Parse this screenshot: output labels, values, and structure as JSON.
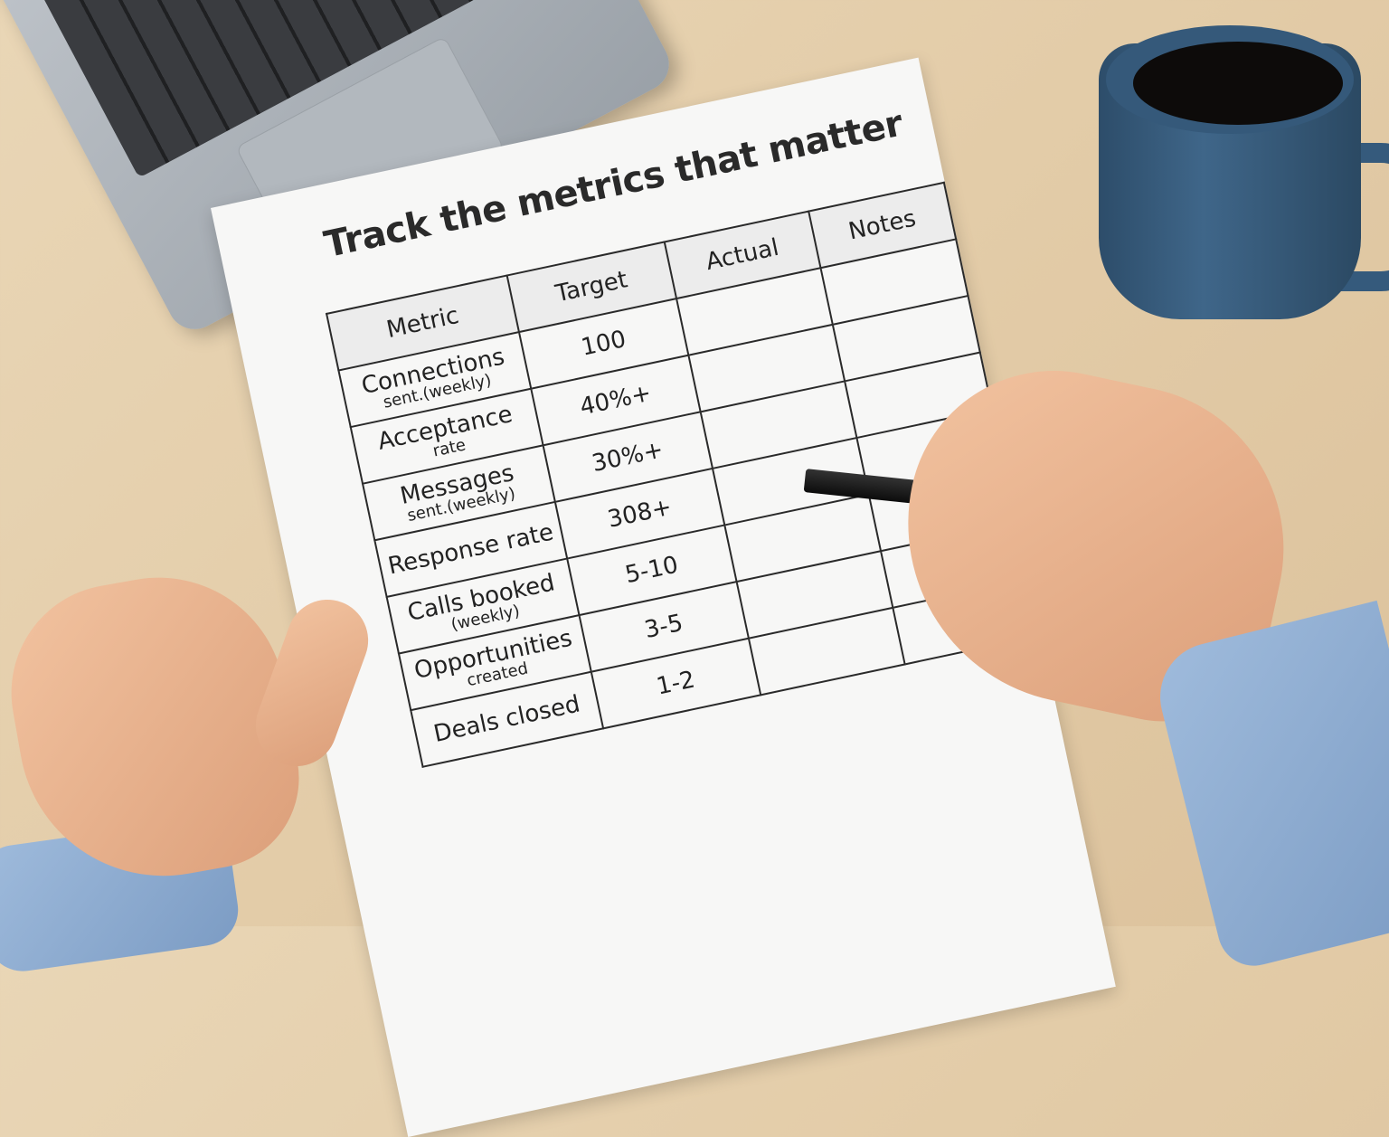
{
  "document": {
    "title": "Track the metrics that matter",
    "table": {
      "headers": [
        "Metric",
        "Target",
        "Actual",
        "Notes"
      ],
      "rows": [
        {
          "metric": "Connections",
          "metric_sub": "sent.(weekly)",
          "target": "100"
        },
        {
          "metric": "Acceptance",
          "metric_sub": "rate",
          "target": "40%+"
        },
        {
          "metric": "Messages",
          "metric_sub": "sent.(weekly)",
          "target": "30%+"
        },
        {
          "metric": "Response rate",
          "metric_sub": "",
          "target": "308+"
        },
        {
          "metric": "Calls booked",
          "metric_sub": "(weekly)",
          "target": "5-10"
        },
        {
          "metric": "Opportunities",
          "metric_sub": "created",
          "target": "3-5"
        },
        {
          "metric": "Deals closed",
          "metric_sub": "",
          "target": "1-2"
        }
      ]
    }
  },
  "colors": {
    "desk": "#e3cca8",
    "mug": "#3f6689",
    "paper": "#f7f7f6",
    "sleeve": "#8fadd2"
  }
}
